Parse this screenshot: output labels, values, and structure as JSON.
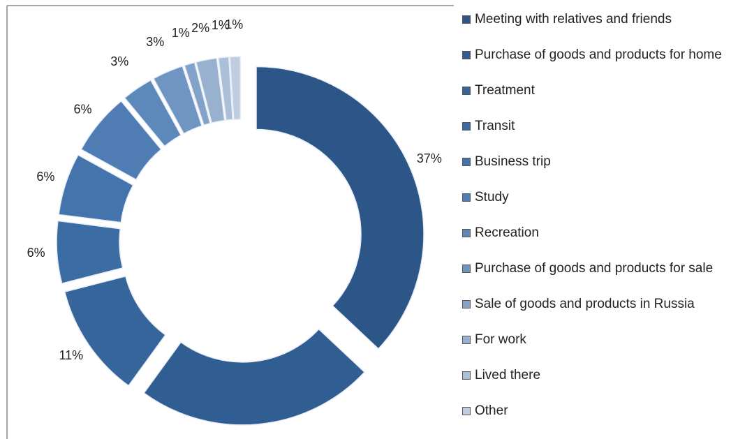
{
  "chart_data": {
    "type": "donut",
    "categories": [
      "Meeting with relatives and friends",
      "Purchase of goods and products for home",
      "Treatment",
      "Transit",
      "Business trip",
      "Study",
      "Recreation",
      "Purchase of goods and products for sale",
      "Sale of goods and products in Russia",
      "For work",
      "Lived there",
      "Other"
    ],
    "values": [
      37,
      23,
      11,
      6,
      6,
      6,
      3,
      3,
      1,
      2,
      1,
      1
    ],
    "value_labels": [
      "37%",
      "23%",
      "11%",
      "6%",
      "6%",
      "6%",
      "3%",
      "3%",
      "1%",
      "2%",
      "1%",
      "1%"
    ],
    "colors": [
      "#2b5687",
      "#305d92",
      "#36659b",
      "#3c6ca4",
      "#4474ac",
      "#4f7db3",
      "#5d88ba",
      "#6f95c2",
      "#82a2c8",
      "#97b1cf",
      "#abc0d7",
      "#bfcde0"
    ],
    "legend": "right"
  }
}
